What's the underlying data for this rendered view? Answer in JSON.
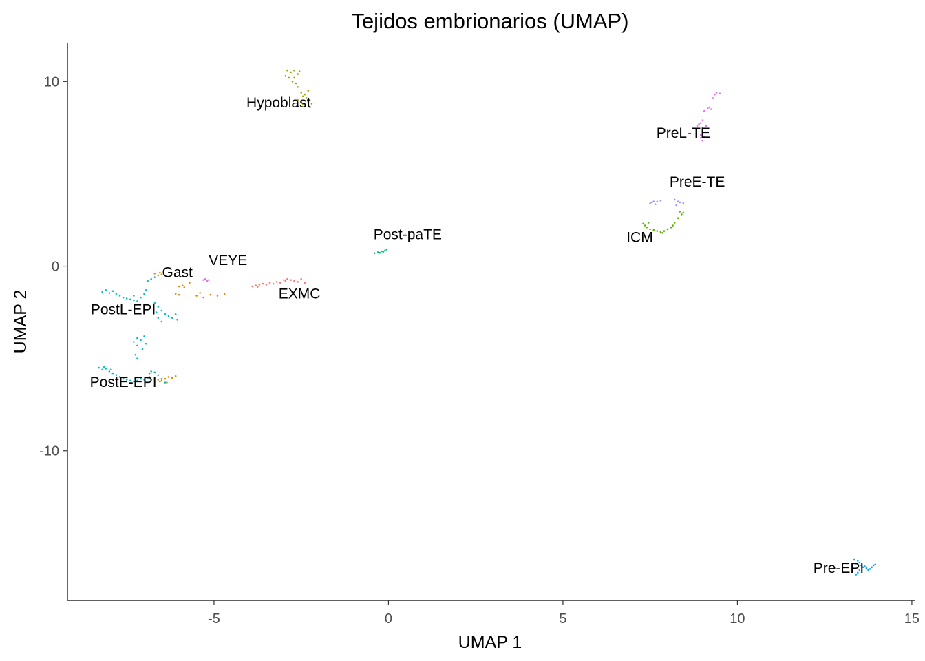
{
  "chart_data": {
    "type": "scatter",
    "title": "Tejidos embrionarios (UMAP)",
    "xlabel": "UMAP 1",
    "ylabel": "UMAP 2",
    "xlim": [
      -9.2,
      15.1
    ],
    "ylim": [
      -18.1,
      12.1
    ],
    "x_ticks": [
      -5,
      0,
      5,
      10,
      15
    ],
    "y_ticks": [
      -10,
      0,
      10
    ],
    "x_tick_labels": [
      "-5",
      "0",
      "5",
      "10",
      "15"
    ],
    "y_tick_labels": [
      "-10",
      "0",
      "10"
    ],
    "grid": false,
    "legend": "none",
    "series": [
      {
        "name": "Hypoblast",
        "color": "#A3A500",
        "label_pos": [
          -3.15,
          8.6
        ],
        "points": [
          [
            -2.9,
            10.6
          ],
          [
            -2.8,
            10.5
          ],
          [
            -2.7,
            10.6
          ],
          [
            -2.6,
            10.4
          ],
          [
            -2.55,
            10.55
          ],
          [
            -2.95,
            10.3
          ],
          [
            -2.85,
            10.2
          ],
          [
            -2.75,
            10.0
          ],
          [
            -2.65,
            9.9
          ],
          [
            -2.6,
            9.7
          ],
          [
            -2.5,
            9.4
          ],
          [
            -2.45,
            9.2
          ],
          [
            -2.35,
            9.1
          ],
          [
            -2.3,
            8.9
          ],
          [
            -2.2,
            8.8
          ],
          [
            -2.25,
            8.6
          ],
          [
            -2.4,
            8.7
          ],
          [
            -2.5,
            8.9
          ],
          [
            -2.6,
            9.0
          ],
          [
            -2.7,
            10.2
          ],
          [
            -2.4,
            9.3
          ],
          [
            -2.3,
            9.5
          ],
          [
            -2.45,
            8.75
          ]
        ]
      },
      {
        "name": "PreL-TE",
        "color": "#E76BF3",
        "label_pos": [
          8.45,
          6.95
        ],
        "points": [
          [
            9.4,
            9.4
          ],
          [
            9.5,
            9.35
          ],
          [
            9.35,
            9.3
          ],
          [
            9.3,
            9.1
          ],
          [
            9.2,
            8.6
          ],
          [
            9.15,
            8.55
          ],
          [
            9.25,
            8.5
          ],
          [
            9.05,
            8.4
          ],
          [
            9.0,
            7.9
          ],
          [
            8.95,
            7.75
          ],
          [
            8.9,
            7.7
          ],
          [
            8.85,
            7.6
          ],
          [
            9.0,
            7.5
          ],
          [
            8.95,
            7.1
          ],
          [
            9.05,
            7.0
          ],
          [
            9.0,
            6.8
          ],
          [
            8.95,
            6.95
          ],
          [
            9.1,
            7.6
          ]
        ]
      },
      {
        "name": "PreE-TE",
        "color": "#9590FF",
        "label_pos": [
          8.85,
          4.3
        ],
        "points": [
          [
            7.5,
            3.4
          ],
          [
            7.6,
            3.5
          ],
          [
            7.7,
            3.5
          ],
          [
            7.8,
            3.55
          ],
          [
            7.65,
            3.35
          ],
          [
            8.2,
            3.6
          ],
          [
            8.3,
            3.5
          ],
          [
            8.35,
            3.45
          ],
          [
            8.45,
            3.4
          ],
          [
            8.25,
            3.3
          ],
          [
            7.55,
            3.45
          ]
        ]
      },
      {
        "name": "ICM",
        "color": "#5BB300",
        "label_pos": [
          7.2,
          1.3
        ],
        "points": [
          [
            7.3,
            2.3
          ],
          [
            7.35,
            2.2
          ],
          [
            7.4,
            2.1
          ],
          [
            7.5,
            2.0
          ],
          [
            7.6,
            1.95
          ],
          [
            7.7,
            1.9
          ],
          [
            7.8,
            1.85
          ],
          [
            7.9,
            1.9
          ],
          [
            8.0,
            2.0
          ],
          [
            8.1,
            2.1
          ],
          [
            8.15,
            2.2
          ],
          [
            8.2,
            2.35
          ],
          [
            8.3,
            2.6
          ],
          [
            8.4,
            2.8
          ],
          [
            8.45,
            2.9
          ],
          [
            8.35,
            2.95
          ],
          [
            7.45,
            2.35
          ],
          [
            7.85,
            1.8
          ]
        ]
      },
      {
        "name": "Post-paTE",
        "color": "#00BF7D",
        "label_pos": [
          0.55,
          1.45
        ],
        "points": [
          [
            -0.4,
            0.7
          ],
          [
            -0.3,
            0.75
          ],
          [
            -0.2,
            0.8
          ],
          [
            -0.1,
            0.85
          ],
          [
            -0.05,
            0.9
          ],
          [
            -0.25,
            0.72
          ],
          [
            -0.15,
            0.78
          ]
        ]
      },
      {
        "name": "EXMC",
        "color": "#F8766D",
        "label_pos": [
          -2.55,
          -1.75
        ],
        "points": [
          [
            -3.9,
            -1.1
          ],
          [
            -3.8,
            -1.05
          ],
          [
            -3.7,
            -1.0
          ],
          [
            -3.6,
            -0.95
          ],
          [
            -3.5,
            -1.0
          ],
          [
            -3.4,
            -0.9
          ],
          [
            -3.3,
            -0.95
          ],
          [
            -3.2,
            -0.85
          ],
          [
            -3.1,
            -0.9
          ],
          [
            -3.0,
            -0.75
          ],
          [
            -2.9,
            -0.7
          ],
          [
            -2.8,
            -0.75
          ],
          [
            -2.7,
            -0.8
          ],
          [
            -2.6,
            -0.85
          ],
          [
            -2.5,
            -0.7
          ],
          [
            -2.4,
            -0.9
          ],
          [
            -3.75,
            -1.12
          ],
          [
            -2.95,
            -0.8
          ]
        ]
      },
      {
        "name": "VEYE",
        "color": "#E76BF3",
        "label_pos": [
          -4.6,
          0.05
        ],
        "points": [
          [
            -5.3,
            -0.75
          ],
          [
            -5.25,
            -0.7
          ],
          [
            -5.2,
            -0.8
          ],
          [
            -5.15,
            -0.75
          ]
        ]
      },
      {
        "name": "Gast",
        "color": "#D89000",
        "label_pos": [
          -6.05,
          -0.6
        ],
        "points": [
          [
            -6.7,
            -0.4
          ],
          [
            -6.6,
            -0.5
          ],
          [
            -6.5,
            -0.45
          ],
          [
            -6.55,
            -0.35
          ],
          [
            -6.0,
            -1.1
          ],
          [
            -5.9,
            -1.05
          ],
          [
            -5.85,
            -1.15
          ],
          [
            -6.1,
            -1.5
          ],
          [
            -6.0,
            -1.55
          ],
          [
            -5.5,
            -1.6
          ],
          [
            -5.3,
            -1.7
          ],
          [
            -5.1,
            -1.55
          ],
          [
            -4.9,
            -1.6
          ],
          [
            -4.7,
            -1.5
          ],
          [
            -5.7,
            -0.9
          ],
          [
            -5.4,
            -1.45
          ],
          [
            -6.85,
            -6.0
          ],
          [
            -6.7,
            -6.1
          ],
          [
            -6.6,
            -6.15
          ],
          [
            -6.5,
            -6.2
          ],
          [
            -6.4,
            -6.1
          ],
          [
            -6.3,
            -6.0
          ],
          [
            -6.2,
            -6.05
          ],
          [
            -6.1,
            -5.95
          ],
          [
            -6.55,
            -6.25
          ],
          [
            -6.35,
            -6.3
          ]
        ]
      },
      {
        "name": "PostL-EPI",
        "color": "#00BFC4",
        "label_pos": [
          -7.6,
          -2.6
        ],
        "points": [
          [
            -8.2,
            -1.4
          ],
          [
            -8.1,
            -1.3
          ],
          [
            -8.0,
            -1.45
          ],
          [
            -7.9,
            -1.35
          ],
          [
            -7.8,
            -1.5
          ],
          [
            -7.7,
            -1.6
          ],
          [
            -7.6,
            -1.7
          ],
          [
            -7.5,
            -1.75
          ],
          [
            -7.4,
            -1.8
          ],
          [
            -7.3,
            -1.85
          ],
          [
            -7.2,
            -1.9
          ],
          [
            -7.1,
            -1.7
          ],
          [
            -7.0,
            -1.5
          ],
          [
            -6.95,
            -1.3
          ],
          [
            -6.9,
            -0.8
          ],
          [
            -6.8,
            -0.7
          ],
          [
            -6.7,
            -0.6
          ],
          [
            -7.3,
            -1.6
          ],
          [
            -6.7,
            -2.0
          ],
          [
            -6.6,
            -2.2
          ],
          [
            -6.65,
            -2.5
          ],
          [
            -6.6,
            -2.8
          ],
          [
            -6.5,
            -3.0
          ],
          [
            -6.4,
            -2.6
          ],
          [
            -6.3,
            -2.7
          ],
          [
            -6.2,
            -2.8
          ],
          [
            -6.1,
            -2.6
          ],
          [
            -6.05,
            -2.9
          ],
          [
            -6.5,
            -2.4
          ],
          [
            -7.3,
            -4.1
          ],
          [
            -7.2,
            -3.9
          ],
          [
            -7.1,
            -4.0
          ],
          [
            -7.0,
            -3.8
          ],
          [
            -6.95,
            -4.2
          ],
          [
            -7.05,
            -4.5
          ],
          [
            -7.2,
            -4.3
          ],
          [
            -7.25,
            -4.8
          ],
          [
            -7.2,
            -5.0
          ]
        ]
      },
      {
        "name": "PostE-EPI",
        "color": "#00BFC4",
        "label_pos": [
          -7.6,
          -6.55
        ],
        "points": [
          [
            -8.3,
            -5.5
          ],
          [
            -8.2,
            -5.6
          ],
          [
            -8.1,
            -5.55
          ],
          [
            -8.0,
            -5.7
          ],
          [
            -7.9,
            -5.8
          ],
          [
            -7.8,
            -5.9
          ],
          [
            -7.7,
            -6.0
          ],
          [
            -7.6,
            -6.1
          ],
          [
            -7.5,
            -6.15
          ],
          [
            -7.4,
            -6.2
          ],
          [
            -7.3,
            -6.25
          ],
          [
            -7.2,
            -6.2
          ],
          [
            -7.1,
            -6.1
          ],
          [
            -7.0,
            -6.15
          ],
          [
            -6.9,
            -6.05
          ],
          [
            -6.85,
            -5.8
          ],
          [
            -6.8,
            -5.7
          ],
          [
            -6.7,
            -5.75
          ],
          [
            -6.6,
            -5.9
          ],
          [
            -6.5,
            -6.1
          ],
          [
            -6.4,
            -6.3
          ],
          [
            -8.15,
            -5.45
          ],
          [
            -7.95,
            -5.6
          ]
        ]
      },
      {
        "name": "Pre-EPI",
        "color": "#00A9FF",
        "label_pos": [
          12.9,
          -16.6
        ],
        "points": [
          [
            13.35,
            -15.9
          ],
          [
            13.45,
            -15.95
          ],
          [
            13.5,
            -16.05
          ],
          [
            13.55,
            -16.2
          ],
          [
            13.6,
            -16.3
          ],
          [
            13.5,
            -16.45
          ],
          [
            13.45,
            -16.6
          ],
          [
            13.4,
            -16.7
          ],
          [
            13.7,
            -16.35
          ],
          [
            13.8,
            -16.4
          ],
          [
            13.85,
            -16.3
          ],
          [
            13.9,
            -16.2
          ],
          [
            13.95,
            -16.15
          ],
          [
            13.4,
            -16.1
          ],
          [
            13.65,
            -16.25
          ],
          [
            13.75,
            -16.45
          ]
        ]
      }
    ]
  }
}
